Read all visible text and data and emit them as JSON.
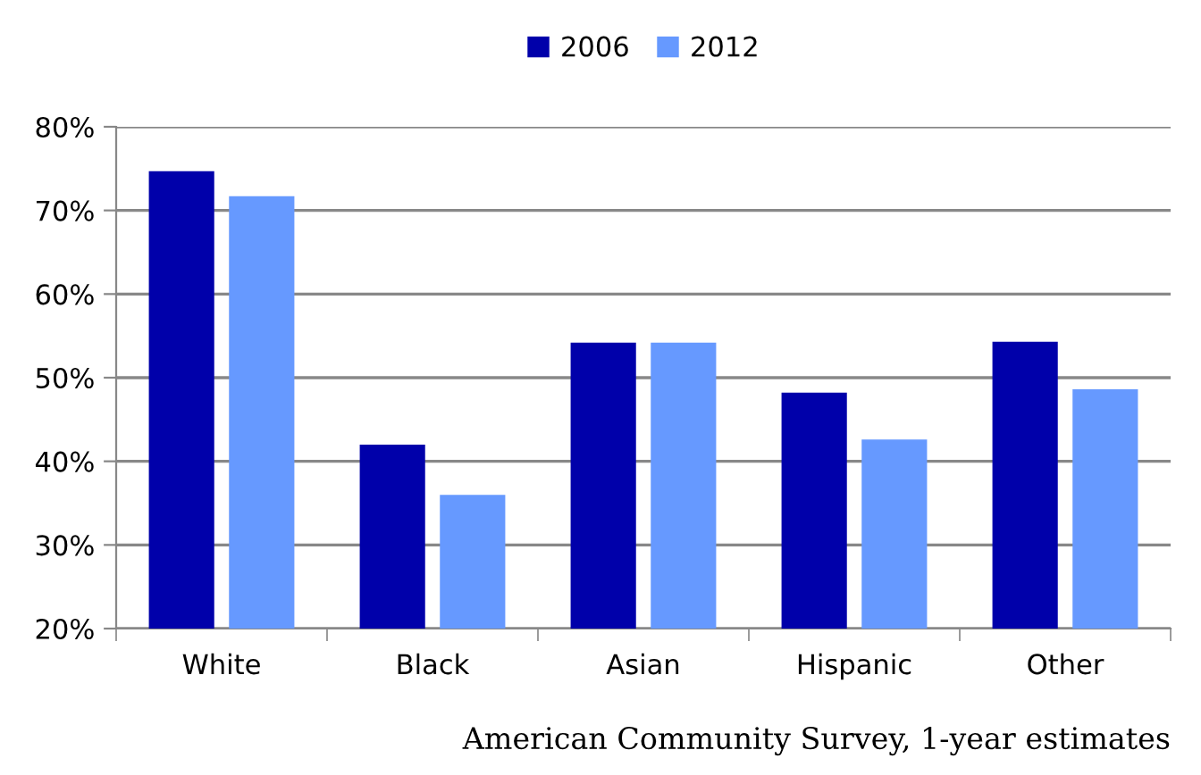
{
  "chart_data": {
    "type": "bar",
    "categories": [
      "White",
      "Black",
      "Asian",
      "Hispanic",
      "Other"
    ],
    "series": [
      {
        "name": "2006",
        "color": "#0000aa",
        "values": [
          74.7,
          42.0,
          54.2,
          48.2,
          54.3
        ]
      },
      {
        "name": "2012",
        "color": "#6699ff",
        "values": [
          71.7,
          36.0,
          54.2,
          42.6,
          48.6
        ]
      }
    ],
    "ylim": [
      20,
      80
    ],
    "yticks": [
      {
        "value": 20,
        "label": "20%"
      },
      {
        "value": 30,
        "label": "30%"
      },
      {
        "value": 40,
        "label": "40%"
      },
      {
        "value": 50,
        "label": "50%"
      },
      {
        "value": 60,
        "label": "60%"
      },
      {
        "value": 70,
        "label": "70%"
      },
      {
        "value": 80,
        "label": "80%"
      }
    ],
    "grid": "y",
    "legend": "top",
    "annotations": [
      "American Community Survey, 1-year estimates"
    ]
  }
}
